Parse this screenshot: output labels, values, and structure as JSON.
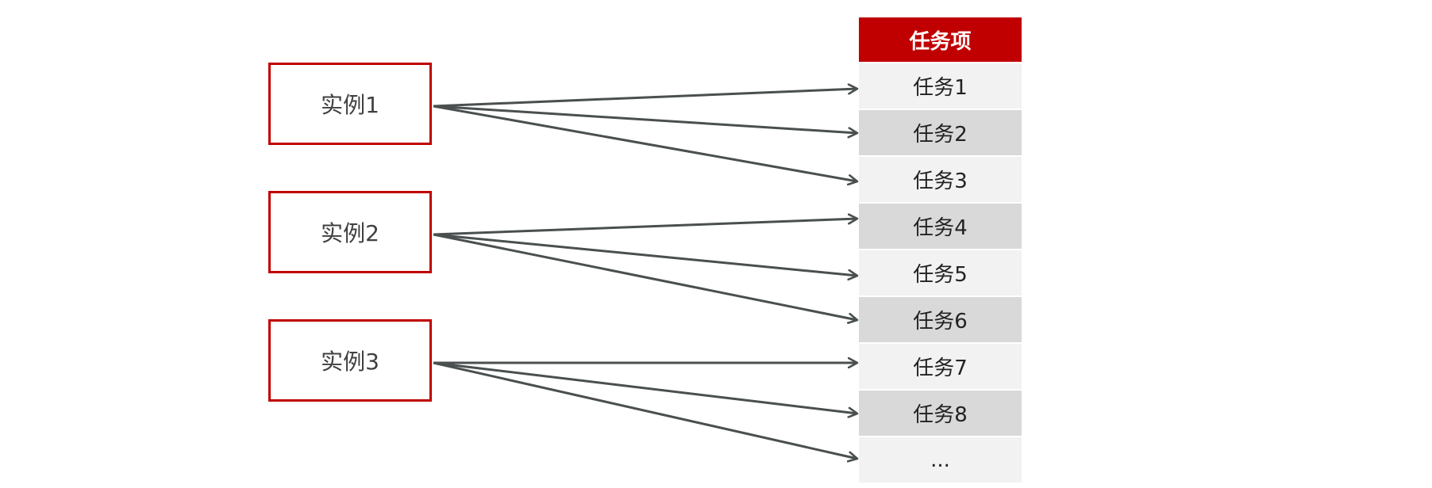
{
  "instances": [
    {
      "label": "实例1"
    },
    {
      "label": "实例2"
    },
    {
      "label": "实例3"
    }
  ],
  "task_table": {
    "header": "任务项",
    "rows": [
      "任务1",
      "任务2",
      "任务3",
      "任务4",
      "任务5",
      "任务6",
      "任务7",
      "任务8",
      "..."
    ]
  },
  "connections": [
    {
      "from": "实例1",
      "to": "任务1"
    },
    {
      "from": "实例1",
      "to": "任务2"
    },
    {
      "from": "实例1",
      "to": "任务3"
    },
    {
      "from": "实例2",
      "to": "任务4"
    },
    {
      "from": "实例2",
      "to": "任务5"
    },
    {
      "from": "实例2",
      "to": "任务6"
    },
    {
      "from": "实例3",
      "to": "任务7"
    },
    {
      "from": "实例3",
      "to": "任务8"
    },
    {
      "from": "实例3",
      "to": "..."
    }
  ],
  "colors": {
    "accent": "#c00000",
    "arrow": "#4a4f4f",
    "row_light": "#f2f2f2",
    "row_dark": "#d9d9d9"
  }
}
